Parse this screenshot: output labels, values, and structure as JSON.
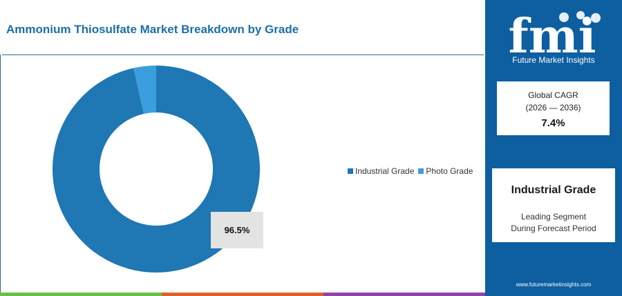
{
  "header": {
    "title": "Ammonium Thiosulfate Market Breakdown by Grade"
  },
  "chart_data": {
    "type": "pie",
    "variant": "donut",
    "categories": [
      "Industrial Grade",
      "Photo Grade"
    ],
    "values": [
      96.5,
      3.5
    ],
    "colors": [
      "#1f77b4",
      "#3a9fdc"
    ],
    "data_labels": [
      "96.5%",
      ""
    ],
    "legend_placement": "right"
  },
  "sidebar": {
    "brand": "fmi",
    "brand_sub": "Future Market Insights",
    "cagr_card": {
      "label": "Global CAGR",
      "period": "(2026 — 2036)",
      "value": "7.4%"
    },
    "segment_card": {
      "name": "Industrial Grade",
      "line1": "Leading Segment",
      "line2": "During Forecast Period"
    },
    "website": "www.futuremarketinsights.com"
  },
  "colors": {
    "sidebar": "#0d5fa0",
    "title": "#1b6fa8",
    "bottom_bar": [
      "#6abf4b",
      "#e0622a",
      "#8e44ad",
      "#0d5fa0"
    ]
  }
}
